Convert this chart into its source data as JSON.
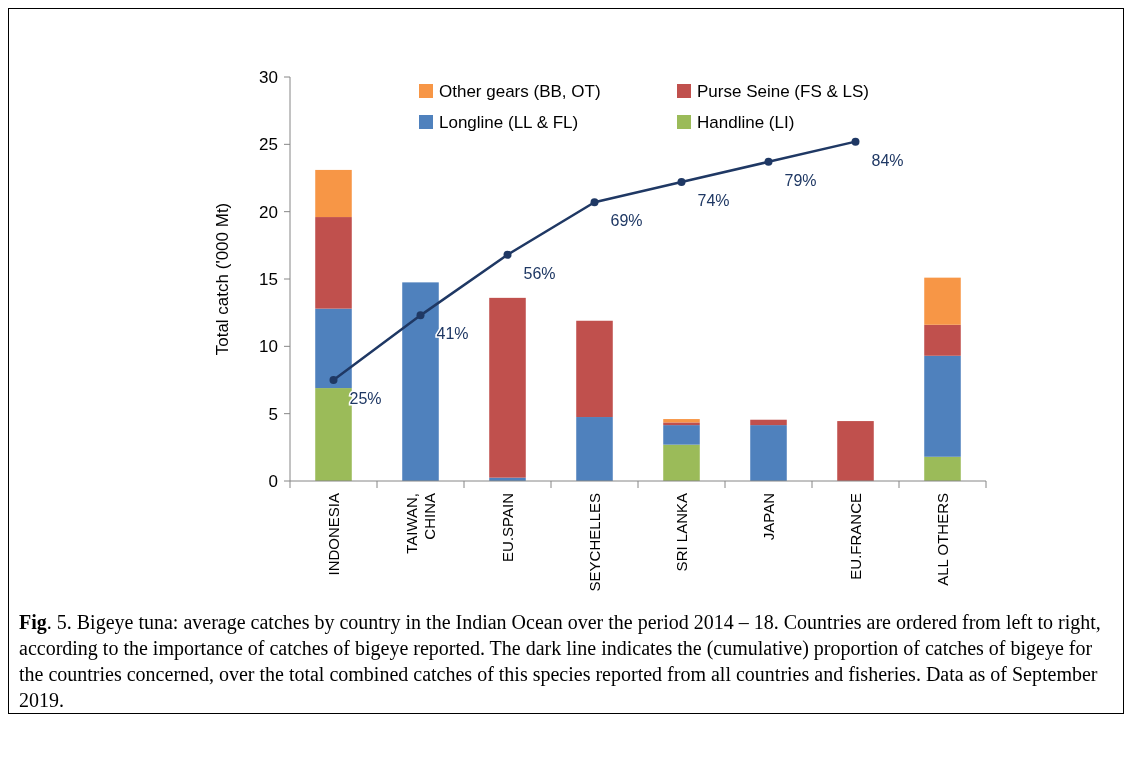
{
  "chart_data": {
    "type": "bar",
    "stacked": true,
    "ylabel": "Total catch ('000 Mt)",
    "categories": [
      "INDONESIA",
      "TAIWAN, CHINA",
      "EU.SPAIN",
      "SEYCHELLES",
      "SRI LANKA",
      "JAPAN",
      "EU.FRANCE",
      "ALL OTHERS"
    ],
    "series": [
      {
        "name": "Handline (LI)",
        "color": "#9bbb59",
        "values": [
          6.9,
          0,
          0,
          0,
          2.7,
          0,
          0,
          1.8
        ]
      },
      {
        "name": "Longline (LL & FL)",
        "color": "#4f81bd",
        "values": [
          5.9,
          14.75,
          0.25,
          4.75,
          1.45,
          4.15,
          0,
          7.5
        ]
      },
      {
        "name": "Purse Seine (FS & LS)",
        "color": "#c0504d",
        "values": [
          6.8,
          0,
          13.35,
          7.15,
          0.2,
          0.4,
          4.45,
          2.3
        ]
      },
      {
        "name": "Other gears (BB, OT)",
        "color": "#f79646",
        "values": [
          3.5,
          0,
          0,
          0,
          0.25,
          0,
          0,
          3.5
        ]
      },
      {
        "type": "line",
        "axis": "y2",
        "color": "#1f3864",
        "marker": "circle",
        "line_style": "solid",
        "values": [
          25,
          41,
          56,
          69,
          74,
          79,
          84,
          null
        ],
        "value_labels": [
          "25%",
          "41%",
          "56%",
          "69%",
          "74%",
          "79%",
          "84%",
          null
        ]
      }
    ],
    "ylim": [
      0,
      30
    ],
    "yticks": [
      0,
      5,
      10,
      15,
      20,
      25,
      30
    ],
    "y2lim": [
      0,
      100
    ],
    "legend": "top",
    "grid": false,
    "annotations": [
      "Fig. 5. Bigeye tuna: average catches by country in the Indian Ocean over the period 2014 – 18. Countries are ordered from left to right, according to the importance of catches of bigeye reported. The dark line indicates the (cumulative) proportion of catches of bigeye for the countries concerned, over the total combined catches of this species reported from all countries and fisheries. Data as of September 2019."
    ]
  }
}
